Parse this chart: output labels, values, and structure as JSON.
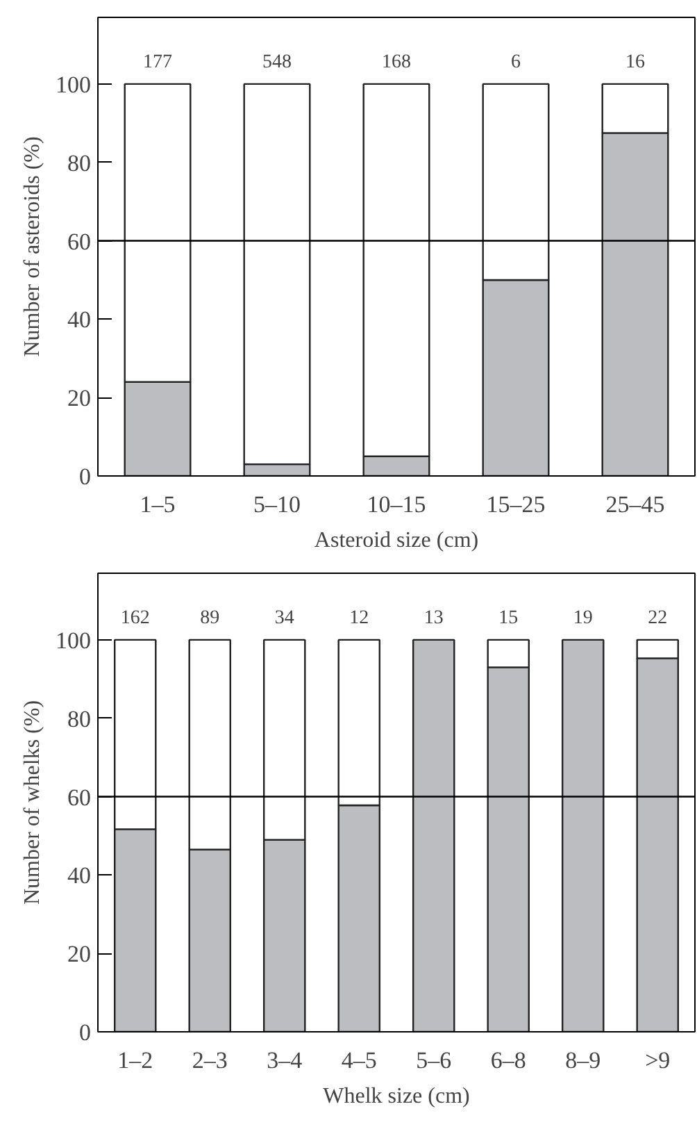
{
  "chart_data": [
    {
      "type": "bar",
      "stacked": true,
      "categories": [
        "1–5",
        "5–10",
        "10–15",
        "15–25",
        "25–45"
      ],
      "xlabel": "Asteroid size (cm)",
      "ylabel": "Number of asteroids (%)",
      "ylim": [
        0,
        117
      ],
      "yticks": [
        0,
        20,
        40,
        60,
        80,
        100
      ],
      "grid": false,
      "series": [
        {
          "color": "#bcbdc0",
          "values": [
            24,
            3,
            5,
            50,
            87.5
          ]
        },
        {
          "color": "#ffffff",
          "values": [
            76,
            97,
            95,
            50,
            12.5
          ]
        }
      ],
      "annotations": [
        "177",
        "548",
        "168",
        "6",
        "16"
      ],
      "ref_lines": [
        {
          "axis": "y",
          "value": 60
        }
      ]
    },
    {
      "type": "bar",
      "stacked": true,
      "categories": [
        "1–2",
        "2–3",
        "3–4",
        "4–5",
        "5–6",
        "6–8",
        "8–9",
        ">9"
      ],
      "xlabel": "Whelk size (cm)",
      "ylabel": "Number of whelks (%)",
      "ylim": [
        0,
        117
      ],
      "yticks": [
        0,
        20,
        40,
        60,
        80,
        100
      ],
      "grid": false,
      "series": [
        {
          "color": "#bcbdc0",
          "values": [
            51.7,
            46.5,
            49,
            57.8,
            100,
            93,
            100,
            95.3
          ]
        },
        {
          "color": "#ffffff",
          "values": [
            48.3,
            53.5,
            51,
            42.2,
            0,
            7,
            0,
            4.7
          ]
        }
      ],
      "annotations": [
        "162",
        "89",
        "34",
        "12",
        "13",
        "15",
        "19",
        "22"
      ],
      "ref_lines": [
        {
          "axis": "y",
          "value": 60
        }
      ]
    }
  ]
}
